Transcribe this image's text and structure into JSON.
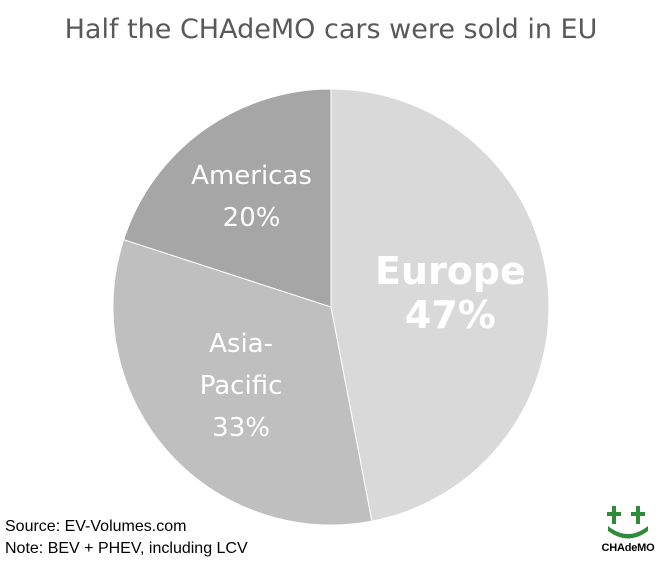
{
  "title": "Half the CHAdeMO cars were sold in EU",
  "chart_data": {
    "type": "pie",
    "slices": [
      {
        "label": "Europe",
        "value": 47,
        "display": "47%",
        "color": "#d9d9d9",
        "text_color": "#ffffff",
        "bold": true
      },
      {
        "label": "Asia-Pacific",
        "lines": [
          "Asia-",
          "Pacific"
        ],
        "value": 33,
        "display": "33%",
        "color": "#bfbfbf",
        "text_color": "#ffffff",
        "bold": false
      },
      {
        "label": "Americas",
        "value": 20,
        "display": "20%",
        "color": "#a6a6a6",
        "text_color": "#ffffff",
        "bold": false
      }
    ],
    "start": "12 o'clock",
    "direction": "clockwise"
  },
  "footnotes": {
    "source": "Source: EV-Volumes.com",
    "note": "Note: BEV + PHEV, including LCV"
  },
  "logo": {
    "text": "CHAdeMO",
    "color": "#2e8b3a"
  }
}
